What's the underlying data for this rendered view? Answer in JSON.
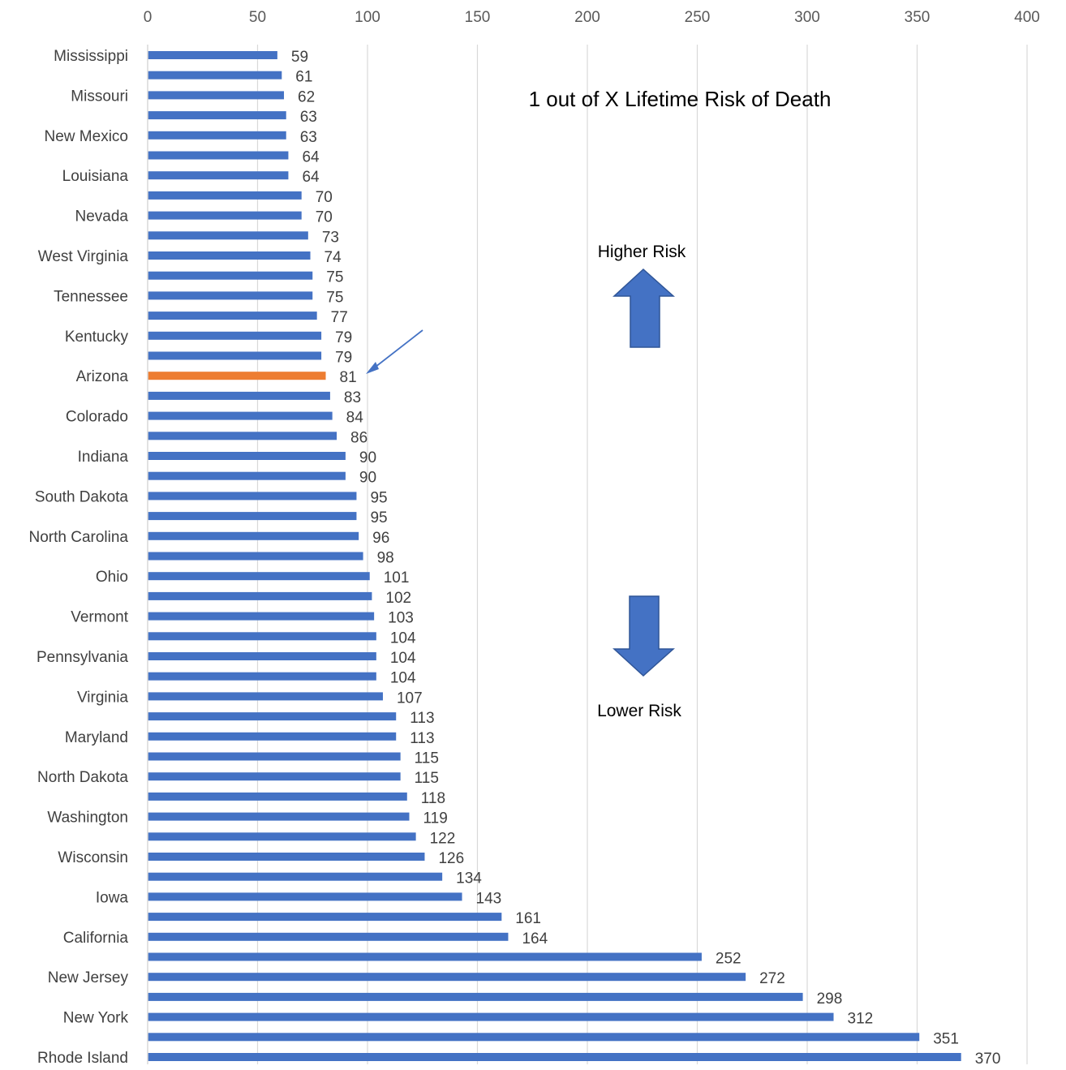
{
  "chart_data": {
    "type": "bar",
    "orientation": "horizontal",
    "title": "1 out of X Lifetime Risk of Death",
    "xlabel": "",
    "ylabel": "",
    "xlim": [
      0,
      400
    ],
    "x_ticks": [
      0,
      50,
      100,
      150,
      200,
      250,
      300,
      350,
      400
    ],
    "x_axis_position": "top",
    "grid": "vertical",
    "legend": "none",
    "data_labels": true,
    "bar_color": "#4472C4",
    "highlight_color": "#ED7D31",
    "highlight_index": 16,
    "categories": [
      "Mississippi",
      "",
      "Missouri",
      "",
      "New Mexico",
      "",
      "Louisiana",
      "",
      "Nevada",
      "",
      "West Virginia",
      "",
      "Tennessee",
      "",
      "Kentucky",
      "",
      "Arizona",
      "",
      "Colorado",
      "",
      "Indiana",
      "",
      "South Dakota",
      "",
      "North Carolina",
      "",
      "Ohio",
      "",
      "Vermont",
      "",
      "Pennsylvania",
      "",
      "Virginia",
      "",
      "Maryland",
      "",
      "North Dakota",
      "",
      "Washington",
      "",
      "Wisconsin",
      "",
      "Iowa",
      "",
      "California",
      "",
      "New Jersey",
      "",
      "New York",
      "",
      "Rhode Island"
    ],
    "values": [
      59,
      61,
      62,
      63,
      63,
      64,
      64,
      70,
      70,
      73,
      74,
      75,
      75,
      77,
      79,
      79,
      81,
      83,
      84,
      86,
      90,
      90,
      95,
      95,
      96,
      98,
      101,
      102,
      103,
      104,
      104,
      104,
      107,
      113,
      113,
      115,
      115,
      118,
      119,
      122,
      126,
      134,
      143,
      161,
      164,
      252,
      272,
      298,
      312,
      351,
      370
    ],
    "annotations": {
      "higher": "Higher Risk",
      "lower": "Lower Risk"
    }
  }
}
